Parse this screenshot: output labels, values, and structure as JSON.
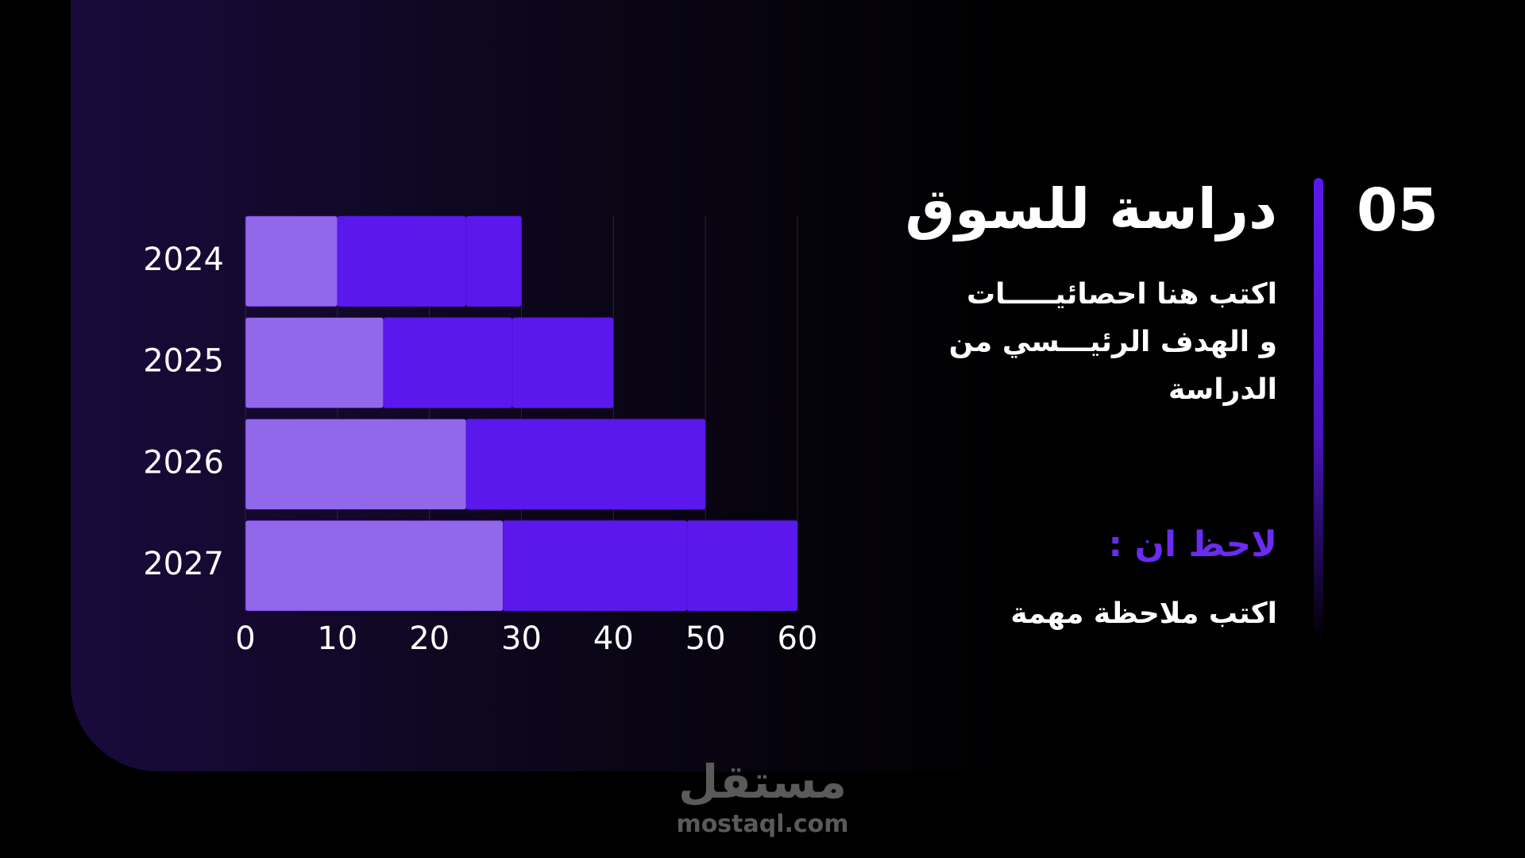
{
  "chart_data": {
    "type": "bar",
    "orientation": "horizontal",
    "stacked": true,
    "categories": [
      "2024",
      "2025",
      "2026",
      "2027"
    ],
    "series": [
      {
        "color": "#9168ea",
        "values": [
          10,
          15,
          24,
          28
        ]
      },
      {
        "color": "#5b18ec",
        "values": [
          14,
          14,
          26,
          20
        ]
      },
      {
        "color": "#5b18ec",
        "values": [
          6,
          11,
          0,
          12
        ]
      }
    ],
    "xlim": [
      0,
      60
    ],
    "xticks": [
      0,
      10,
      20,
      30,
      40,
      50,
      60
    ],
    "grid": true
  },
  "slide": {
    "number": "05",
    "title": "دراسة للسوق",
    "body": [
      "اكتب هنا احصائيـــــات",
      "و  الهدف الرئيـــسي من",
      "الدراسة"
    ],
    "note_heading": "لاحظ ان :",
    "note": "اكتب ملاحظة مهمة"
  },
  "watermark": {
    "logo": "مستقل",
    "url": "mostaql.com"
  }
}
